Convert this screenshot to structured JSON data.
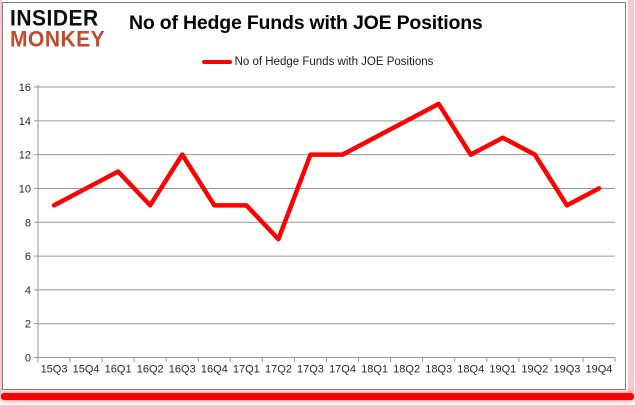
{
  "logo": {
    "line1": "INSIDER",
    "line2": "MONKEY"
  },
  "title": "No of Hedge Funds with JOE Positions",
  "legend": {
    "label": "No of Hedge Funds with JOE Positions"
  },
  "chart_data": {
    "type": "line",
    "title": "No of Hedge Funds with JOE Positions",
    "categories": [
      "15Q3",
      "15Q4",
      "16Q1",
      "16Q2",
      "16Q3",
      "16Q4",
      "17Q1",
      "17Q2",
      "17Q3",
      "17Q4",
      "18Q1",
      "18Q2",
      "18Q3",
      "18Q4",
      "19Q1",
      "19Q2",
      "19Q3",
      "19Q4"
    ],
    "series": [
      {
        "name": "No of Hedge Funds with JOE Positions",
        "values": [
          9,
          10,
          11,
          9,
          12,
          9,
          9,
          7,
          12,
          12,
          13,
          14,
          15,
          12,
          13,
          12,
          9,
          10
        ]
      }
    ],
    "xlabel": "",
    "ylabel": "",
    "ylim": [
      0,
      16
    ],
    "ytick_step": 2,
    "grid": true,
    "legend_position": "top-center",
    "colors": {
      "line": "#ff0000",
      "grid": "#969696",
      "axis_text": "#262626",
      "title_text": "#000000",
      "logo_insider": "#0d0d0d",
      "logo_monkey": "#c04a2b",
      "bottom_bar": "#fb0000",
      "page_edge": "#f6caca",
      "frame_border": "#808080"
    }
  }
}
